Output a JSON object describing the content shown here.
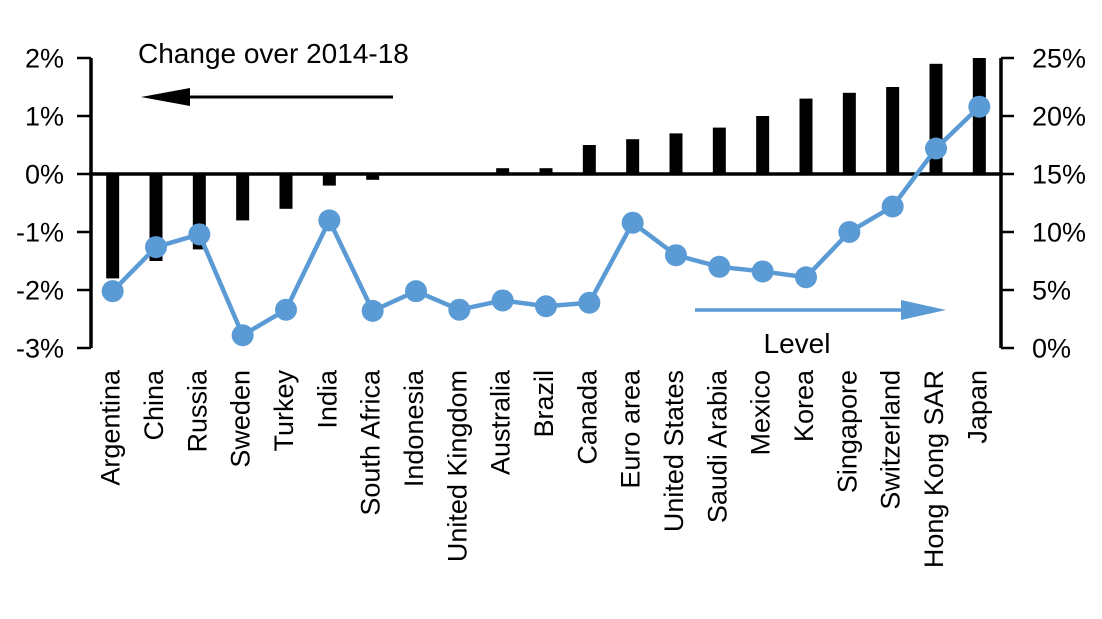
{
  "chart_data": {
    "type": "bar",
    "subtype": "combo-bar-line-dual-axis",
    "categories": [
      "Argentina",
      "China",
      "Russia",
      "Sweden",
      "Turkey",
      "India",
      "South Africa",
      "Indonesia",
      "United Kingdom",
      "Australia",
      "Brazil",
      "Canada",
      "Euro area",
      "United States",
      "Saudi Arabia",
      "Mexico",
      "Korea",
      "Singapore",
      "Switzerland",
      "Hong Kong SAR",
      "Japan"
    ],
    "series": [
      {
        "name": "Change over 2014-18",
        "type": "bar",
        "axis": "left",
        "color": "#000000",
        "values": [
          -1.8,
          -1.5,
          -1.3,
          -0.8,
          -0.6,
          -0.2,
          -0.1,
          0,
          0,
          0.1,
          0.1,
          0.5,
          0.6,
          0.7,
          0.8,
          1.0,
          1.3,
          1.4,
          1.5,
          1.9,
          2.0
        ]
      },
      {
        "name": "Level",
        "type": "line",
        "axis": "right",
        "color": "#5B9BD5",
        "values": [
          4.9,
          8.7,
          9.8,
          1.1,
          3.3,
          11.0,
          3.2,
          4.9,
          3.3,
          4.1,
          3.6,
          3.9,
          10.8,
          8.0,
          7.0,
          6.6,
          6.1,
          10.0,
          12.2,
          17.2,
          20.8
        ]
      }
    ],
    "title": "",
    "xlabel": "",
    "ylabel_left": "",
    "ylabel_right": "",
    "left_axis": {
      "tick_labels": [
        "2%",
        "1%",
        "0%",
        "-1%",
        "-2%",
        "-3%"
      ],
      "tick_values": [
        2,
        1,
        0,
        -1,
        -2,
        -3
      ],
      "ylim": [
        -3,
        2
      ]
    },
    "right_axis": {
      "tick_labels": [
        "25%",
        "20%",
        "15%",
        "10%",
        "5%",
        "0%"
      ],
      "tick_values": [
        25,
        20,
        15,
        10,
        5,
        0
      ],
      "ylim": [
        0,
        25
      ]
    },
    "grid": false,
    "legend_position": "none",
    "annotations": {
      "bar_series_label": "Change over 2014-18",
      "line_series_label": "Level",
      "bar_arrow_direction": "left",
      "line_arrow_direction": "right"
    }
  },
  "colors": {
    "bar": "#000000",
    "line": "#5B9BD5",
    "axis": "#000000",
    "text": "#000000",
    "background": "#FFFFFF"
  }
}
